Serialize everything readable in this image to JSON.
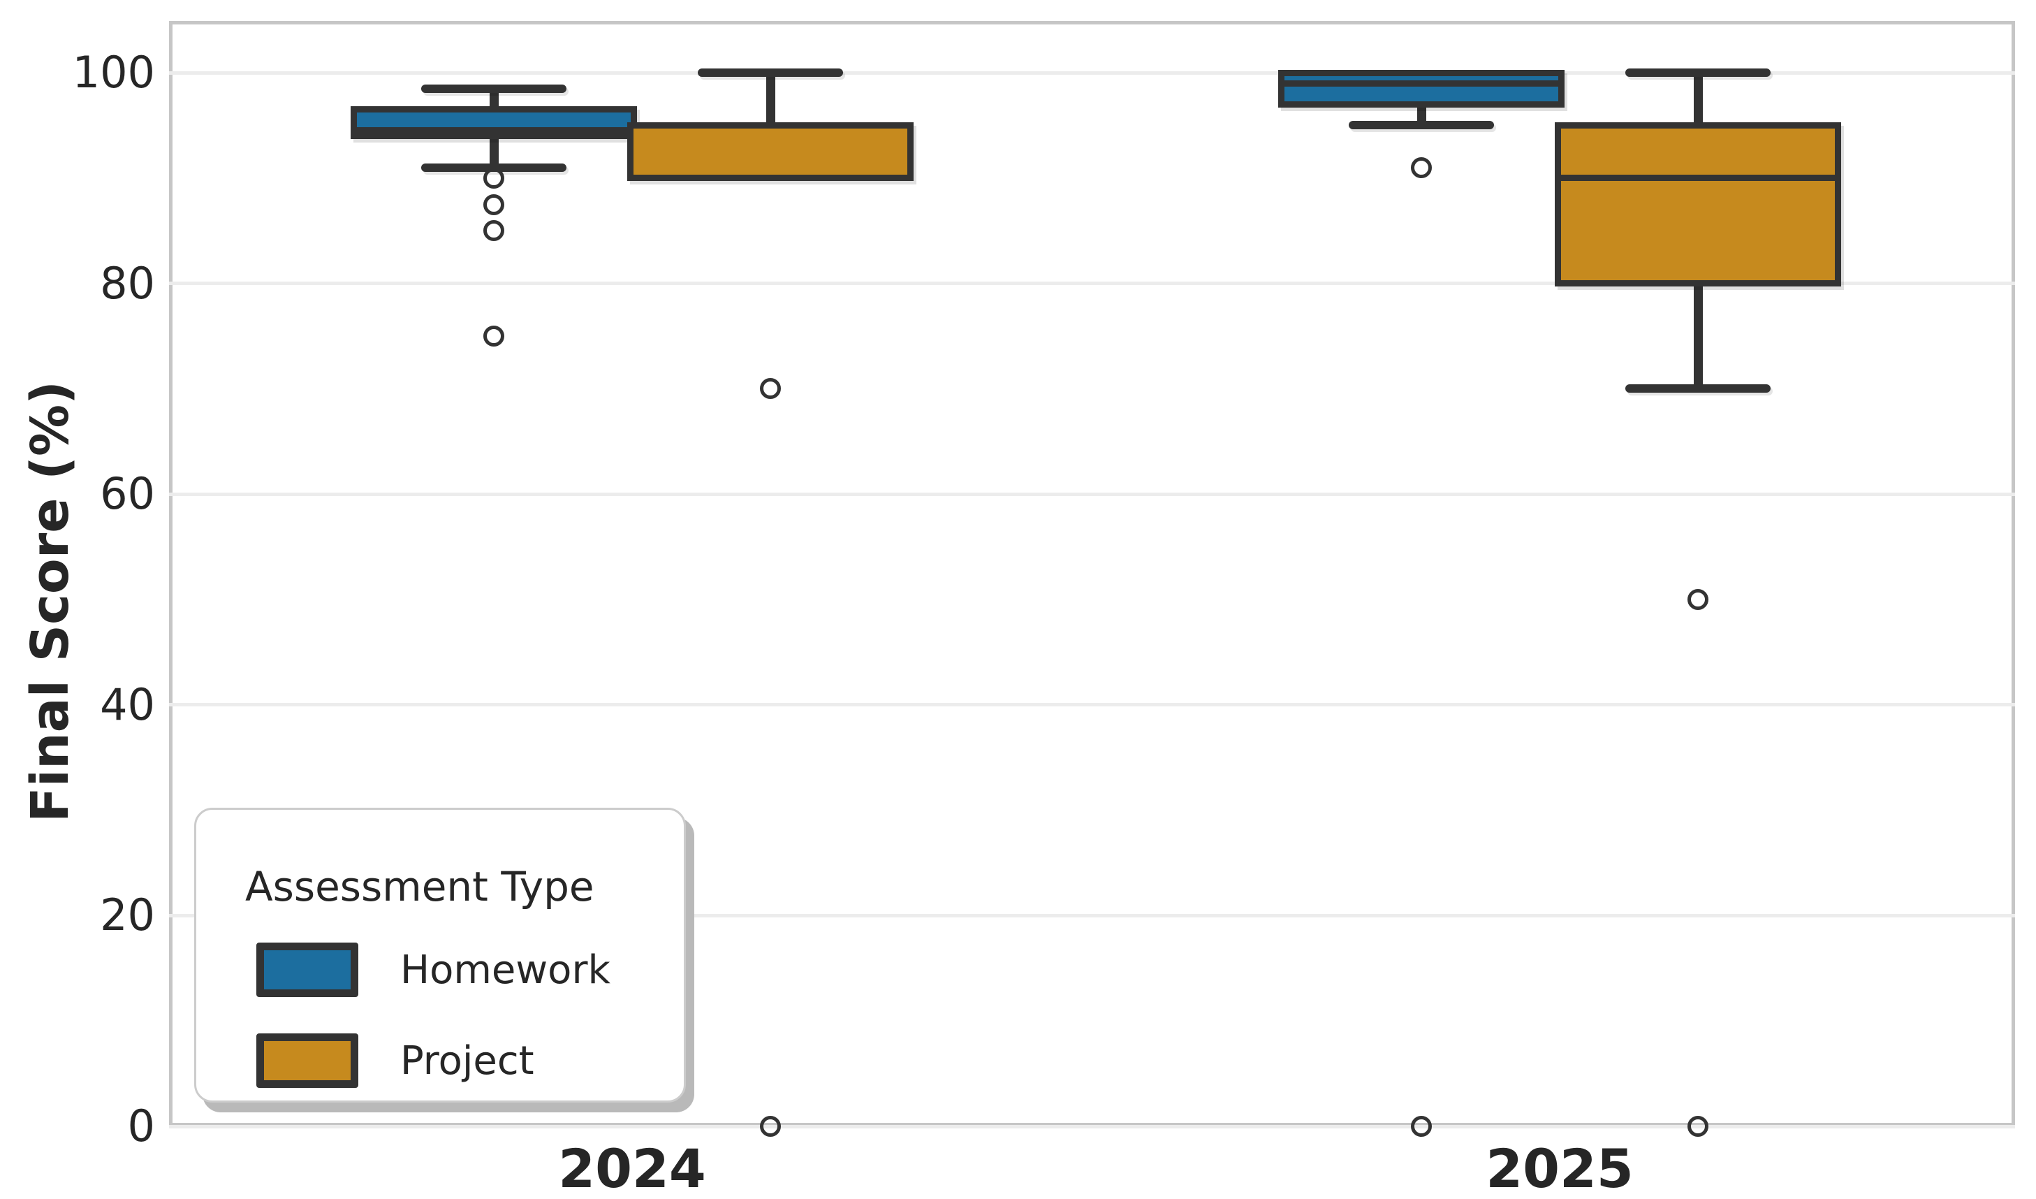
{
  "chart_data": {
    "type": "boxplot",
    "orientation": "vertical",
    "ylabel": "Final Score (%)",
    "xlabel": "",
    "ylim": [
      0,
      105
    ],
    "yticks": [
      0,
      20,
      40,
      60,
      80,
      100
    ],
    "grid": "horizontal-light",
    "categories": [
      "2024",
      "2025"
    ],
    "legend": {
      "title": "Assessment Type",
      "position": "lower-left",
      "entries": [
        {
          "label": "Homework",
          "color": "#1C6E9F"
        },
        {
          "label": "Project",
          "color": "#C68A1E"
        }
      ]
    },
    "line_color": "#333333",
    "series": [
      {
        "name": "Homework",
        "color": "#1C6E9F",
        "boxes": [
          {
            "category": "2024",
            "whislo": 91,
            "q1": 94,
            "med": 94.5,
            "q3": 96.5,
            "whishi": 98.5,
            "outliers": [
              90,
              87.5,
              85,
              75
            ]
          },
          {
            "category": "2025",
            "whislo": 95,
            "q1": 97,
            "med": 99,
            "q3": 100,
            "whishi": 100,
            "outliers": [
              91,
              0
            ]
          }
        ]
      },
      {
        "name": "Project",
        "color": "#C68A1E",
        "boxes": [
          {
            "category": "2024",
            "whislo": 90,
            "q1": 90,
            "med": 90,
            "q3": 95,
            "whishi": 100,
            "outliers": [
              70,
              0
            ]
          },
          {
            "category": "2025",
            "whislo": 70,
            "q1": 80,
            "med": 90,
            "q3": 95,
            "whishi": 100,
            "outliers": [
              50,
              0
            ]
          }
        ]
      }
    ]
  }
}
